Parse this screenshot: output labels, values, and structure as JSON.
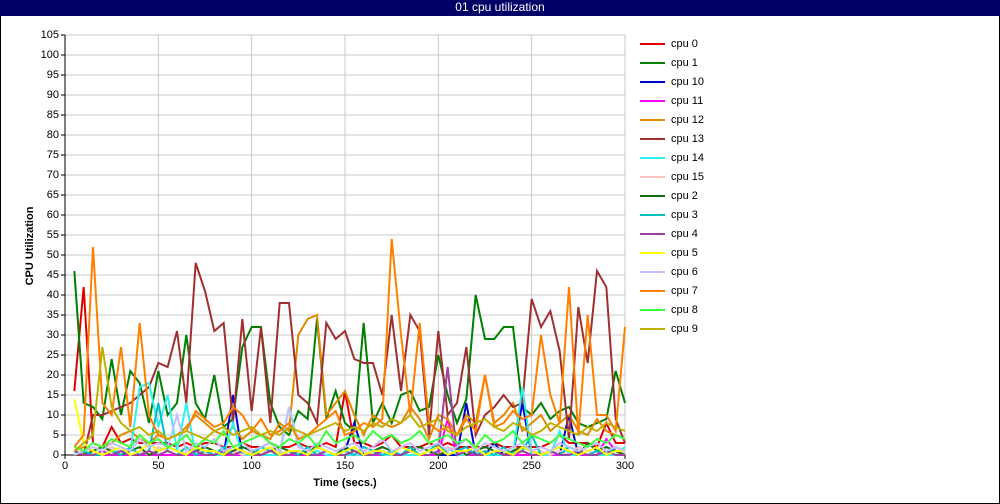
{
  "chart_data": {
    "type": "line",
    "title": "01 cpu utilization",
    "xlabel": "Time (secs.)",
    "ylabel": "CPU Utilization",
    "xlim": [
      0,
      300
    ],
    "xticks": [
      0,
      50,
      100,
      150,
      200,
      250,
      300
    ],
    "ylim": [
      0,
      105
    ],
    "yticks": [
      0,
      5,
      10,
      15,
      20,
      25,
      30,
      35,
      40,
      45,
      50,
      55,
      60,
      65,
      70,
      75,
      80,
      85,
      90,
      95,
      100,
      105
    ],
    "grid": true,
    "legend": "right",
    "x": [
      5,
      10,
      15,
      20,
      25,
      30,
      35,
      40,
      45,
      50,
      55,
      60,
      65,
      70,
      75,
      80,
      85,
      90,
      95,
      100,
      105,
      110,
      115,
      120,
      125,
      130,
      135,
      140,
      145,
      150,
      155,
      160,
      165,
      170,
      175,
      180,
      185,
      190,
      195,
      200,
      205,
      210,
      215,
      220,
      225,
      230,
      235,
      240,
      245,
      250,
      255,
      260,
      265,
      270,
      275,
      280,
      285,
      290,
      295,
      300
    ],
    "series": [
      {
        "name": "cpu 0",
        "color": "#e00000",
        "values": [
          16,
          42,
          3,
          2,
          7,
          3,
          4,
          3,
          3,
          3,
          3,
          2,
          3,
          2,
          3,
          3,
          2,
          2,
          3,
          2,
          2,
          3,
          2,
          2,
          3,
          2,
          2,
          3,
          2,
          16,
          3,
          3,
          2,
          3,
          5,
          2,
          2,
          2,
          3,
          2,
          3,
          2,
          2,
          2,
          2,
          3,
          2,
          2,
          2,
          2,
          2,
          3,
          5,
          3,
          3,
          3,
          2,
          8,
          3,
          3
        ]
      },
      {
        "name": "cpu 1",
        "color": "#008000",
        "values": [
          46,
          13,
          12,
          9,
          24,
          10,
          21,
          18,
          8,
          21,
          10,
          13,
          30,
          13,
          9,
          20,
          7,
          9,
          27,
          32,
          32,
          13,
          7,
          5,
          11,
          9,
          34,
          9,
          16,
          8,
          6,
          33,
          8,
          13,
          8,
          15,
          16,
          11,
          12,
          25,
          15,
          8,
          14,
          40,
          29,
          29,
          32,
          32,
          12,
          10,
          13,
          9,
          11,
          12,
          8,
          7,
          8,
          9,
          21,
          13
        ]
      },
      {
        "name": "cpu 10",
        "color": "#0000cc",
        "values": [
          0,
          0,
          0,
          0,
          0,
          1,
          0,
          0,
          0,
          0,
          0,
          0,
          0,
          0,
          0,
          0,
          0,
          15,
          0,
          0,
          0,
          0,
          0,
          1,
          0,
          0,
          0,
          0,
          0,
          1,
          8,
          0,
          0,
          1,
          0,
          0,
          0,
          0,
          0,
          0,
          0,
          0,
          13,
          0,
          0,
          3,
          0,
          0,
          13,
          0,
          0,
          0,
          0,
          10,
          0,
          0,
          0,
          0,
          0,
          0
        ]
      },
      {
        "name": "cpu 11",
        "color": "#ff00ff",
        "values": [
          0,
          0,
          0,
          0,
          0,
          0,
          0,
          0,
          0,
          0,
          0,
          0,
          0,
          0,
          0,
          0,
          0,
          0,
          0,
          0,
          0,
          0,
          0,
          0,
          0,
          0,
          0,
          0,
          0,
          0,
          0,
          0,
          0,
          0,
          0,
          0,
          0,
          0,
          0,
          0,
          9,
          0,
          0,
          0,
          0,
          0,
          0,
          0,
          0,
          0,
          0,
          0,
          0,
          0,
          0,
          0,
          0,
          4,
          1,
          0
        ]
      },
      {
        "name": "cpu 12",
        "color": "#e08a00",
        "values": [
          1,
          2,
          1,
          2,
          3,
          5,
          6,
          4,
          3,
          5,
          4,
          5,
          7,
          10,
          8,
          6,
          5,
          7,
          4,
          6,
          5,
          4,
          8,
          6,
          30,
          34,
          35,
          10,
          13,
          16,
          10,
          5,
          10,
          8,
          7,
          8,
          12,
          9,
          4,
          10,
          9,
          5,
          10,
          8,
          20,
          8,
          10,
          13,
          6,
          8,
          10,
          6,
          8,
          10,
          6,
          5,
          9,
          6,
          5,
          4
        ]
      },
      {
        "name": "cpu 13",
        "color": "#a03030",
        "values": [
          0,
          0,
          10,
          10,
          11,
          12,
          13,
          15,
          17,
          23,
          22,
          31,
          13,
          48,
          41,
          31,
          33,
          8,
          34,
          11,
          32,
          8,
          38,
          38,
          15,
          13,
          8,
          33,
          29,
          31,
          24,
          23,
          23,
          15,
          35,
          16,
          35,
          31,
          5,
          31,
          10,
          13,
          27,
          5,
          10,
          12,
          15,
          12,
          13,
          39,
          32,
          36,
          26,
          4,
          37,
          23,
          46,
          42,
          9,
          3
        ]
      },
      {
        "name": "cpu 14",
        "color": "#30f0f0",
        "values": [
          0,
          1,
          0,
          0,
          2,
          0,
          1,
          17,
          18,
          7,
          15,
          1,
          13,
          0,
          1,
          0,
          0,
          8,
          0,
          0,
          0,
          0,
          0,
          12,
          3,
          0,
          1,
          0,
          0,
          0,
          0,
          0,
          1,
          0,
          0,
          0,
          0,
          0,
          1,
          0,
          2,
          0,
          0,
          1,
          0,
          0,
          0,
          0,
          17,
          0,
          0,
          0,
          6,
          0,
          0,
          1,
          0,
          0,
          0,
          2
        ]
      },
      {
        "name": "cpu 15",
        "color": "#ffc0c0",
        "values": [
          1,
          0,
          1,
          0,
          2,
          1,
          0,
          1,
          0,
          2,
          1,
          0,
          1,
          2,
          0,
          1,
          0,
          1,
          0,
          1,
          0,
          2,
          1,
          0,
          1,
          0,
          2,
          1,
          0,
          1,
          0,
          1,
          0,
          2,
          1,
          0,
          1,
          0,
          1,
          0,
          2,
          1,
          0,
          1,
          0,
          1,
          0,
          2,
          1,
          0,
          1,
          0,
          1,
          0,
          2,
          1,
          0,
          1,
          0,
          1
        ]
      },
      {
        "name": "cpu 2",
        "color": "#107010",
        "values": [
          1,
          0,
          1,
          2,
          1,
          0,
          1,
          2,
          0,
          1,
          2,
          1,
          0,
          1,
          2,
          1,
          0,
          1,
          2,
          1,
          0,
          1,
          2,
          1,
          0,
          1,
          2,
          1,
          0,
          2,
          1,
          0,
          1,
          2,
          1,
          0,
          1,
          2,
          1,
          0,
          1,
          2,
          0,
          1,
          2,
          1,
          0,
          1,
          2,
          1,
          0,
          1,
          2,
          1,
          0,
          3,
          1,
          2,
          1,
          0
        ]
      },
      {
        "name": "cpu 3",
        "color": "#00c0c0",
        "values": [
          0,
          1,
          0,
          0,
          1,
          0,
          2,
          0,
          1,
          13,
          1,
          0,
          2,
          0,
          1,
          0,
          2,
          0,
          1,
          0,
          2,
          1,
          0,
          1,
          0,
          2,
          0,
          1,
          0,
          1,
          0,
          2,
          1,
          0,
          1,
          0,
          2,
          0,
          1,
          3,
          0,
          1,
          2,
          0,
          1,
          0,
          2,
          0,
          1,
          5,
          0,
          1,
          0,
          2,
          1,
          0,
          1,
          0,
          2,
          1
        ]
      },
      {
        "name": "cpu 4",
        "color": "#a040a0",
        "values": [
          1,
          0,
          0,
          1,
          0,
          1,
          0,
          0,
          1,
          0,
          1,
          0,
          0,
          1,
          0,
          0,
          1,
          0,
          1,
          0,
          0,
          1,
          0,
          0,
          1,
          0,
          0,
          1,
          0,
          0,
          1,
          0,
          0,
          1,
          0,
          0,
          1,
          0,
          0,
          1,
          22,
          0,
          1,
          0,
          0,
          1,
          0,
          0,
          1,
          0,
          0,
          1,
          0,
          0,
          1,
          0,
          0,
          1,
          0,
          0
        ]
      },
      {
        "name": "cpu 5",
        "color": "#ffff00",
        "values": [
          14,
          3,
          1,
          0,
          1,
          2,
          0,
          1,
          3,
          1,
          2,
          1,
          0,
          2,
          1,
          1,
          0,
          2,
          1,
          0,
          1,
          2,
          0,
          1,
          1,
          0,
          2,
          1,
          0,
          1,
          2,
          0,
          1,
          1,
          0,
          2,
          1,
          0,
          1,
          2,
          0,
          1,
          1,
          2,
          0,
          1,
          1,
          0,
          2,
          1,
          0,
          1,
          2,
          1,
          0,
          1,
          2,
          0,
          1,
          1
        ]
      },
      {
        "name": "cpu 6",
        "color": "#c0c0ff",
        "values": [
          0,
          1,
          2,
          1,
          3,
          2,
          1,
          4,
          2,
          3,
          2,
          10,
          1,
          3,
          2,
          4,
          1,
          2,
          3,
          1,
          2,
          3,
          1,
          12,
          2,
          1,
          3,
          2,
          1,
          2,
          3,
          1,
          2,
          4,
          1,
          2,
          3,
          1,
          2,
          3,
          1,
          2,
          4,
          1,
          3,
          2,
          1,
          2,
          3,
          1,
          2,
          1,
          3,
          2,
          1,
          2,
          3,
          1,
          2,
          1
        ]
      },
      {
        "name": "cpu 7",
        "color": "#ff8000",
        "values": [
          2,
          5,
          52,
          13,
          10,
          27,
          7,
          33,
          10,
          5,
          4,
          5,
          6,
          11,
          9,
          7,
          8,
          12,
          10,
          6,
          9,
          5,
          6,
          8,
          4,
          5,
          7,
          9,
          11,
          5,
          6,
          8,
          7,
          9,
          54,
          30,
          10,
          33,
          8,
          6,
          7,
          5,
          9,
          6,
          20,
          7,
          8,
          11,
          9,
          10,
          30,
          15,
          8,
          42,
          5,
          35,
          10,
          10,
          6,
          32
        ]
      },
      {
        "name": "cpu 8",
        "color": "#40ff40",
        "values": [
          2,
          1,
          3,
          2,
          4,
          3,
          2,
          5,
          3,
          4,
          2,
          3,
          5,
          2,
          4,
          3,
          6,
          2,
          3,
          4,
          5,
          3,
          2,
          4,
          3,
          5,
          2,
          6,
          3,
          4,
          5,
          3,
          6,
          4,
          5,
          3,
          4,
          6,
          3,
          4,
          5,
          3,
          4,
          2,
          5,
          3,
          4,
          6,
          3,
          5,
          4,
          3,
          5,
          4,
          3,
          2,
          4,
          3,
          5,
          4
        ]
      },
      {
        "name": "cpu 9",
        "color": "#c0b000",
        "values": [
          1,
          3,
          5,
          27,
          12,
          8,
          6,
          7,
          5,
          6,
          4,
          5,
          6,
          5,
          4,
          6,
          7,
          5,
          6,
          7,
          5,
          6,
          5,
          7,
          6,
          5,
          6,
          7,
          8,
          6,
          7,
          6,
          8,
          7,
          9,
          8,
          10,
          7,
          8,
          9,
          6,
          5,
          7,
          8,
          9,
          7,
          6,
          8,
          7,
          5,
          6,
          8,
          7,
          6,
          5,
          7,
          6,
          8,
          7,
          6
        ]
      }
    ]
  }
}
